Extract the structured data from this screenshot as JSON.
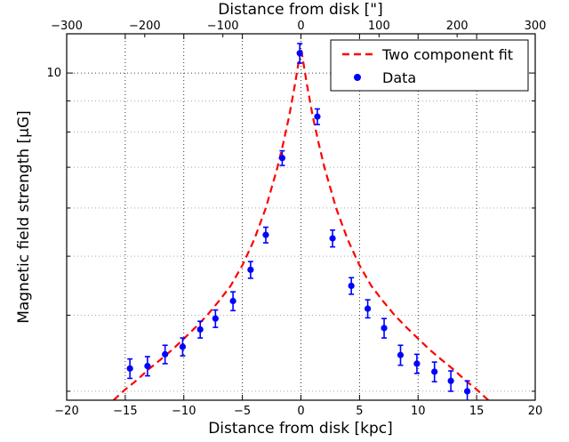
{
  "chart_data": {
    "type": "scatter",
    "xlabel": "Distance from disk [kpc]",
    "x2label": "Distance from disk [\"]",
    "ylabel": "Magnetic field strength [μG]",
    "xlim": [
      -20,
      20
    ],
    "x2lim": [
      -300,
      300
    ],
    "ylim": [
      2.9,
      11.6
    ],
    "yscale": "log",
    "grid": true,
    "legend_position": "top-right",
    "x_ticks": [
      "−20",
      "−15",
      "−10",
      "−5",
      "0",
      "5",
      "10",
      "15",
      "20"
    ],
    "x2_ticks": [
      "−300",
      "−200",
      "−100",
      "0",
      "100",
      "200",
      "300"
    ],
    "y_tick_label": "10",
    "y_tick_value": 10,
    "series": [
      {
        "name": "Two component fit",
        "kind": "line",
        "color": "#ff0000",
        "dash": true,
        "x": [
          -16,
          -15,
          -14,
          -13,
          -12,
          -11,
          -10,
          -9,
          -8,
          -7,
          -6,
          -5,
          -4,
          -3,
          -2,
          -1.5,
          -1,
          -0.5,
          0,
          0.5,
          1,
          1.5,
          2,
          3,
          4,
          5,
          6,
          7,
          8,
          9,
          10,
          11,
          12,
          13,
          14,
          15,
          16
        ],
        "y": [
          2.9,
          3.02,
          3.13,
          3.26,
          3.38,
          3.51,
          3.66,
          3.82,
          4.0,
          4.22,
          4.47,
          4.83,
          5.32,
          6.0,
          7.0,
          7.68,
          8.5,
          9.6,
          11.0,
          9.6,
          8.5,
          7.68,
          7.0,
          6.0,
          5.32,
          4.83,
          4.47,
          4.22,
          4.0,
          3.82,
          3.66,
          3.51,
          3.38,
          3.26,
          3.13,
          3.02,
          2.9
        ]
      },
      {
        "name": "Data",
        "kind": "points",
        "color": "#0000ff",
        "x": [
          -14.6,
          -13.1,
          -11.6,
          -10.1,
          -8.6,
          -7.3,
          -5.8,
          -4.3,
          -3.0,
          -1.6,
          -0.1,
          1.4,
          2.7,
          4.3,
          5.7,
          7.1,
          8.5,
          9.9,
          11.4,
          12.8,
          14.2
        ],
        "y": [
          3.27,
          3.3,
          3.45,
          3.55,
          3.79,
          3.95,
          4.22,
          4.75,
          5.42,
          7.25,
          10.78,
          8.48,
          5.35,
          4.47,
          4.1,
          3.81,
          3.44,
          3.33,
          3.23,
          3.12,
          3.0
        ],
        "err": [
          0.12,
          0.12,
          0.12,
          0.12,
          0.12,
          0.13,
          0.15,
          0.15,
          0.16,
          0.2,
          0.4,
          0.25,
          0.17,
          0.14,
          0.14,
          0.14,
          0.13,
          0.12,
          0.12,
          0.12,
          0.12
        ]
      }
    ]
  }
}
